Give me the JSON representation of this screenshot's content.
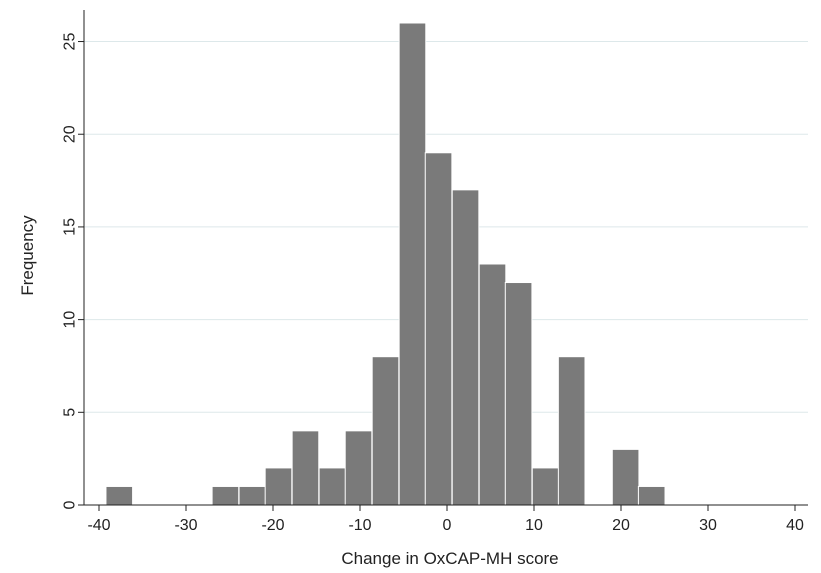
{
  "chart_data": {
    "type": "bar",
    "xlabel": "Change in OxCAP-MH score",
    "ylabel": "Frequency",
    "xlim": [
      -40,
      40
    ],
    "ylim": [
      0,
      26.5
    ],
    "bin_width": 3.06,
    "xticks": [
      -40,
      -30,
      -20,
      -10,
      0,
      10,
      20,
      30,
      40
    ],
    "yticks": [
      0,
      5,
      10,
      15,
      20,
      25
    ],
    "grid": true,
    "bar_color": "#7a7a7a",
    "bins": [
      {
        "x0": -39.2,
        "value": 1
      },
      {
        "x0": -27.0,
        "value": 1
      },
      {
        "x0": -23.9,
        "value": 1
      },
      {
        "x0": -20.9,
        "value": 2
      },
      {
        "x0": -17.8,
        "value": 4
      },
      {
        "x0": -14.7,
        "value": 2
      },
      {
        "x0": -11.7,
        "value": 4
      },
      {
        "x0": -8.6,
        "value": 8
      },
      {
        "x0": -5.5,
        "value": 26
      },
      {
        "x0": -2.5,
        "value": 19
      },
      {
        "x0": 0.6,
        "value": 17
      },
      {
        "x0": 3.7,
        "value": 13
      },
      {
        "x0": 6.7,
        "value": 12
      },
      {
        "x0": 9.8,
        "value": 2
      },
      {
        "x0": 12.8,
        "value": 8
      },
      {
        "x0": 19.0,
        "value": 3
      },
      {
        "x0": 22.0,
        "value": 1
      }
    ]
  }
}
